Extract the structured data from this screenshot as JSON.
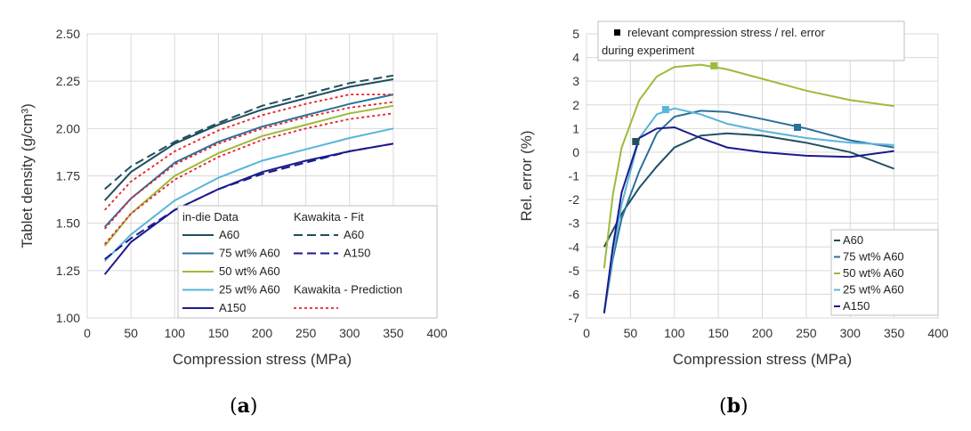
{
  "colors": {
    "A60": "#1f4e5f",
    "75 wt% A60": "#2a7099",
    "50 wt% A60": "#9cbb3c",
    "25 wt% A60": "#5ab4dc",
    "A150": "#1a1a8c",
    "prediction": "#e8202a"
  },
  "panels": {
    "a": {
      "open": "(",
      "letter": "a",
      "close": ")"
    },
    "b": {
      "open": "(",
      "letter": "b",
      "close": ")"
    }
  },
  "chart_data": [
    {
      "type": "line",
      "xlabel": "Compression stress (MPa)",
      "ylabel": "Tablet density (g/cm³)",
      "xlim": [
        0,
        400
      ],
      "ylim": [
        1.0,
        2.5
      ],
      "xticks": [
        "0",
        "50",
        "100",
        "150",
        "200",
        "250",
        "300",
        "350",
        "400"
      ],
      "yticks": [
        "1.00",
        "1.25",
        "1.50",
        "1.75",
        "2.00",
        "2.25",
        "2.50"
      ],
      "grid": true,
      "legend": {
        "placement": "bottom-right",
        "col1_title": "in-die Data",
        "col2_title": "Kawakita - Fit",
        "col2_title_b": "Kawakita - Prediction",
        "entries": [
          "A60",
          "75 wt% A60",
          "50 wt% A60",
          "25 wt% A60",
          "A150"
        ],
        "fit_entries": [
          "A60",
          "A150"
        ]
      },
      "x": [
        20,
        50,
        100,
        150,
        200,
        250,
        300,
        350
      ],
      "series": [
        {
          "name": "A60",
          "style": "solid",
          "values": [
            1.62,
            1.77,
            1.92,
            2.02,
            2.1,
            2.16,
            2.22,
            2.26
          ]
        },
        {
          "name": "75 wt% A60",
          "style": "solid",
          "values": [
            1.48,
            1.63,
            1.82,
            1.93,
            2.01,
            2.07,
            2.13,
            2.18
          ]
        },
        {
          "name": "50 wt% A60",
          "style": "solid",
          "values": [
            1.38,
            1.55,
            1.75,
            1.87,
            1.96,
            2.02,
            2.08,
            2.12
          ]
        },
        {
          "name": "25 wt% A60",
          "style": "solid",
          "values": [
            1.3,
            1.44,
            1.62,
            1.74,
            1.83,
            1.89,
            1.95,
            2.0
          ]
        },
        {
          "name": "A150",
          "style": "solid",
          "values": [
            1.23,
            1.4,
            1.57,
            1.68,
            1.77,
            1.83,
            1.88,
            1.92
          ]
        },
        {
          "name": "A60",
          "style": "dashed",
          "values": [
            1.68,
            1.8,
            1.93,
            2.03,
            2.12,
            2.18,
            2.24,
            2.28
          ]
        },
        {
          "name": "A150",
          "style": "dashed",
          "values": [
            1.31,
            1.42,
            1.57,
            1.68,
            1.76,
            1.82,
            1.88,
            1.92
          ]
        },
        {
          "name": "Kawakita - Prediction",
          "style": "dotted",
          "values": [
            1.57,
            1.72,
            1.88,
            1.99,
            2.07,
            2.13,
            2.18,
            2.18
          ]
        },
        {
          "name": "Kawakita - Prediction",
          "style": "dotted",
          "values": [
            1.47,
            1.63,
            1.81,
            1.92,
            2.0,
            2.06,
            2.11,
            2.14
          ]
        },
        {
          "name": "Kawakita - Prediction",
          "style": "dotted",
          "values": [
            1.39,
            1.55,
            1.73,
            1.85,
            1.94,
            2.0,
            2.05,
            2.08
          ]
        }
      ]
    },
    {
      "type": "line",
      "xlabel": "Compression stress (MPa)",
      "ylabel": "Rel. error (%)",
      "xlim": [
        0,
        400
      ],
      "ylim": [
        -7,
        5
      ],
      "xticks": [
        "0",
        "50",
        "100",
        "150",
        "200",
        "250",
        "300",
        "350",
        "400"
      ],
      "yticks": [
        "-7",
        "-6",
        "-5",
        "-4",
        "-3",
        "-2",
        "-1",
        "0",
        "1",
        "2",
        "3",
        "4",
        "5"
      ],
      "grid": true,
      "annotation": {
        "line1": "relevant compression stress / rel. error",
        "line2": "during experiment"
      },
      "legend": {
        "placement": "bottom-right",
        "entries": [
          "A60",
          "75 wt% A60",
          "50 wt% A60",
          "25 wt% A60",
          "A150"
        ]
      },
      "x": [
        20,
        30,
        40,
        60,
        80,
        100,
        130,
        160,
        200,
        250,
        300,
        350
      ],
      "series": [
        {
          "name": "A60",
          "values": [
            -4.0,
            -3.3,
            -2.6,
            -1.5,
            -0.6,
            0.2,
            0.7,
            0.8,
            0.7,
            0.4,
            0.0,
            -0.7
          ]
        },
        {
          "name": "75 wt% A60",
          "values": [
            -6.8,
            -4.5,
            -2.8,
            -0.8,
            0.8,
            1.5,
            1.75,
            1.7,
            1.4,
            1.0,
            0.5,
            0.2
          ]
        },
        {
          "name": "50 wt% A60",
          "values": [
            -4.9,
            -1.8,
            0.2,
            2.2,
            3.2,
            3.6,
            3.7,
            3.5,
            3.1,
            2.6,
            2.2,
            1.95
          ]
        },
        {
          "name": "25 wt% A60",
          "values": [
            -6.8,
            -4.3,
            -2.2,
            0.6,
            1.6,
            1.85,
            1.6,
            1.2,
            0.9,
            0.6,
            0.4,
            0.3
          ]
        },
        {
          "name": "A150",
          "values": [
            -6.8,
            -4.0,
            -1.7,
            0.6,
            1.0,
            1.05,
            0.6,
            0.2,
            0.0,
            -0.15,
            -0.2,
            0.05
          ]
        }
      ],
      "markers": [
        {
          "series": "A60",
          "x": 56,
          "y": 0.45
        },
        {
          "series": "75 wt% A60",
          "x": 240,
          "y": 1.05
        },
        {
          "series": "50 wt% A60",
          "x": 145,
          "y": 3.65
        },
        {
          "series": "25 wt% A60",
          "x": 90,
          "y": 1.8
        }
      ]
    }
  ]
}
